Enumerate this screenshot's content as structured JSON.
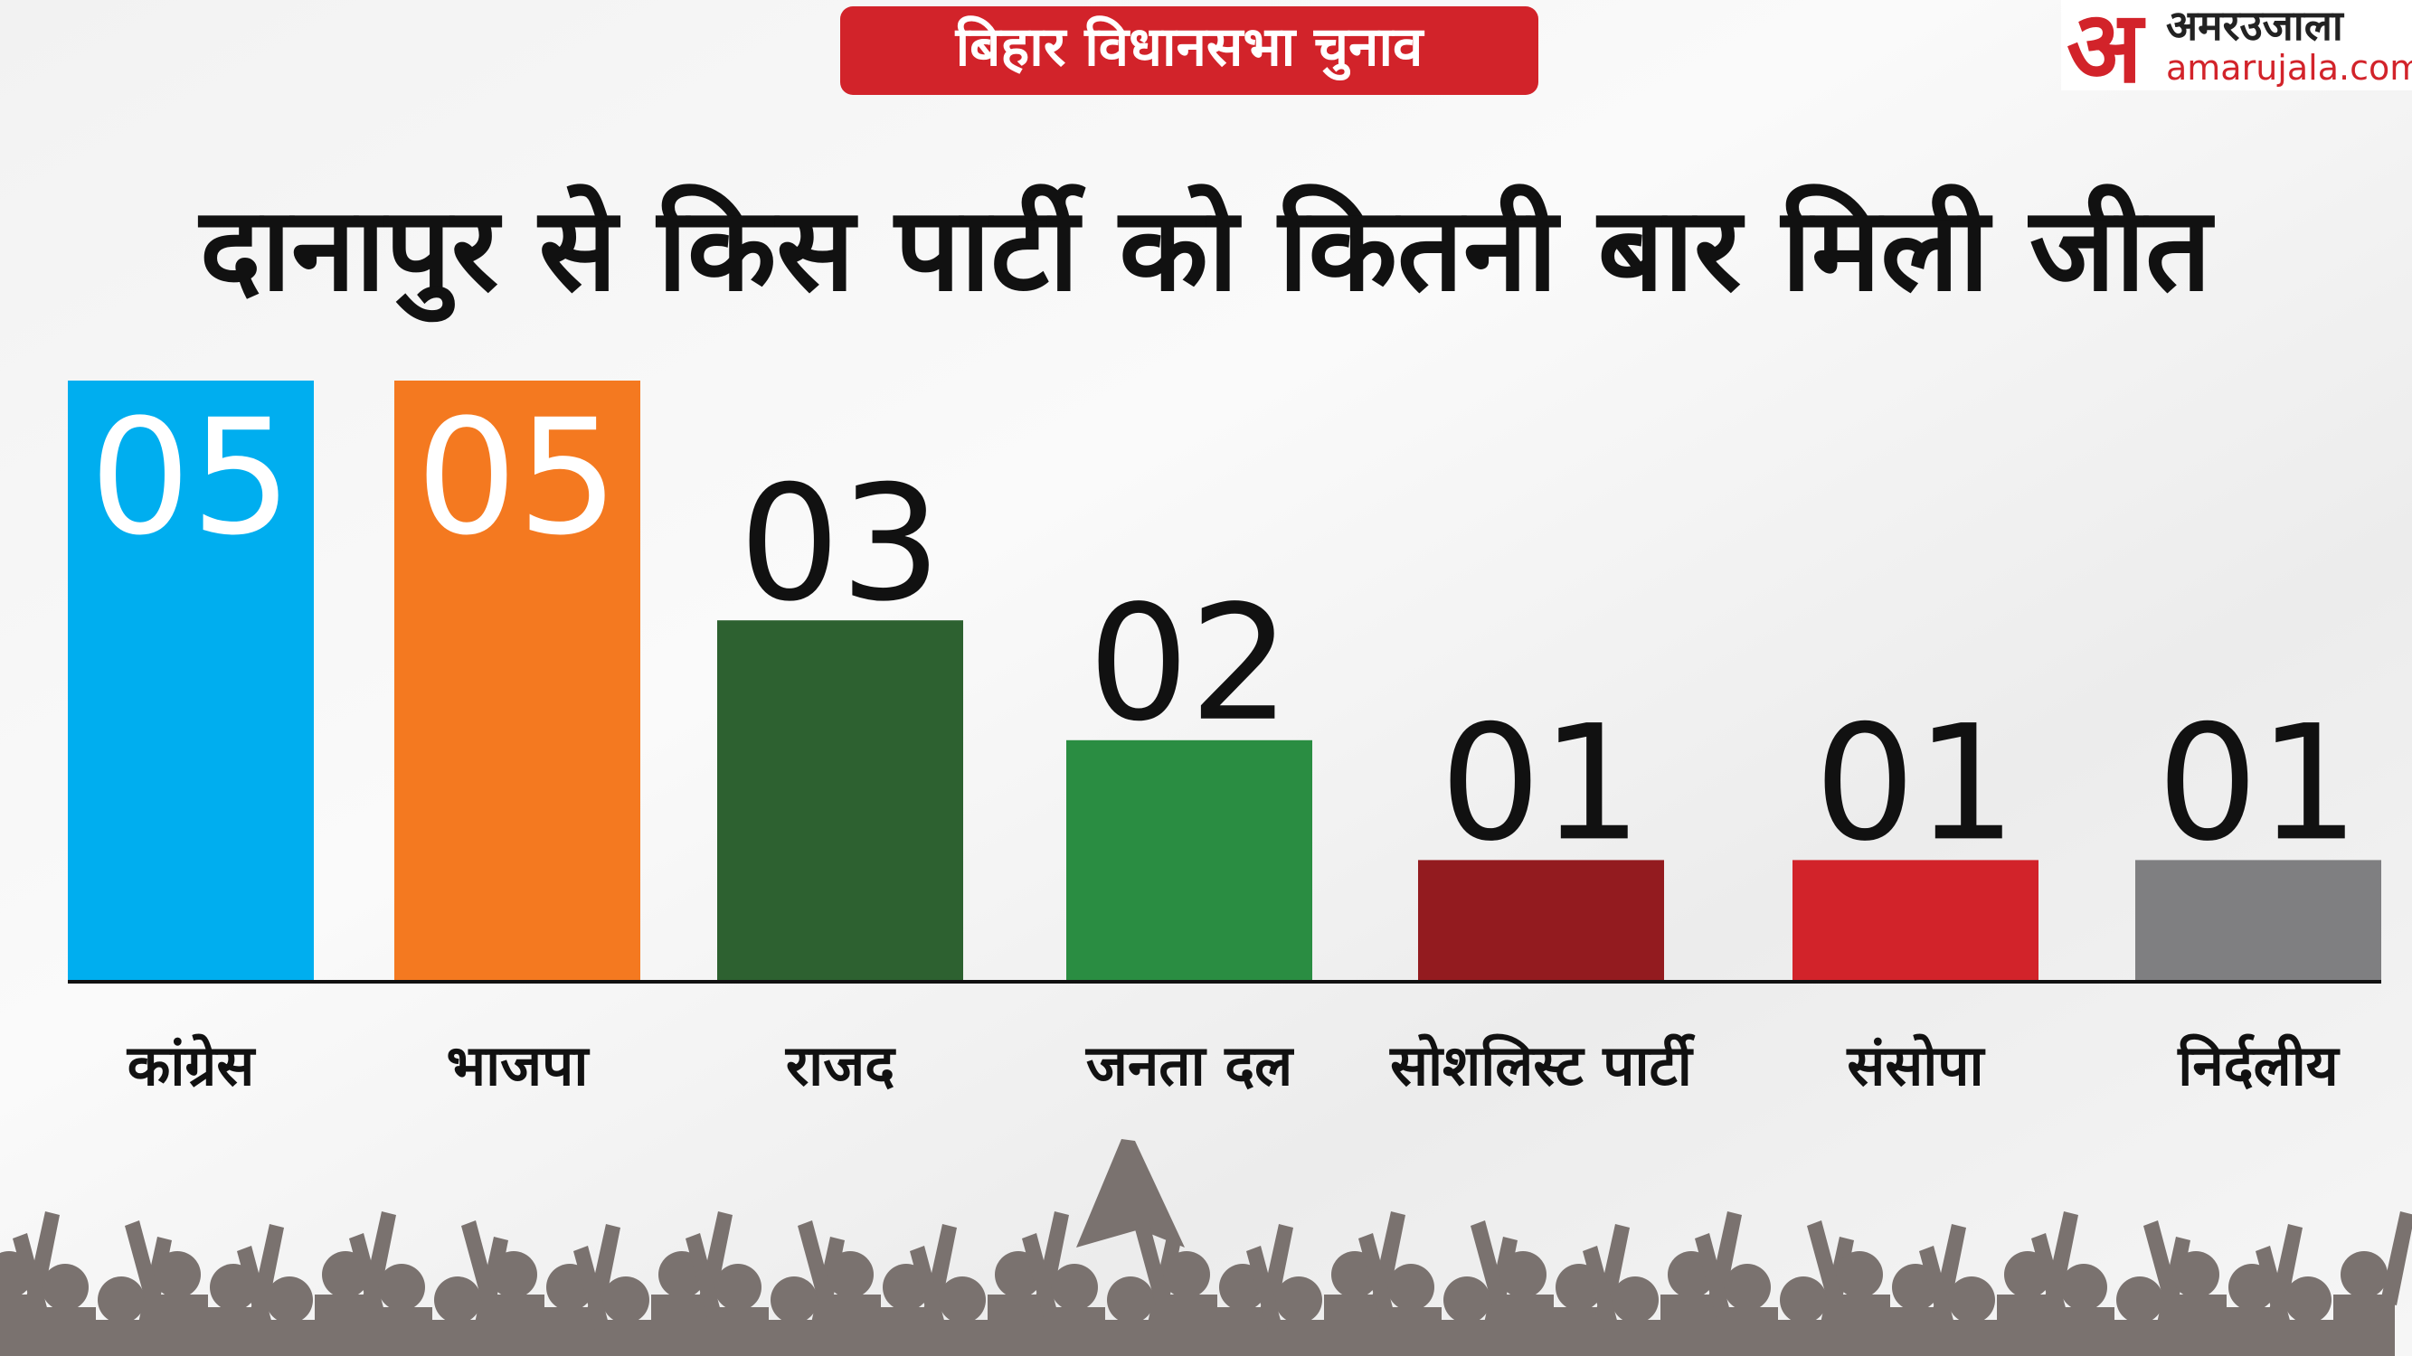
{
  "header": {
    "tag": "बिहार विधानसभा चुनाव",
    "logo_mark": "अ",
    "logo_name": "अमरउजाला",
    "logo_site": "amarujala.com"
  },
  "chart_data": {
    "type": "bar",
    "title": "दानापुर से किस पार्टी को कितनी बार मिली जीत",
    "categories": [
      "कांग्रेस",
      "भाजपा",
      "राजद",
      "जनता दल",
      "सोशलिस्ट पार्टी",
      "संसोपा",
      "निर्दलीय"
    ],
    "values": [
      5,
      5,
      3,
      2,
      1,
      1,
      1
    ],
    "value_labels": [
      "05",
      "05",
      "03",
      "02",
      "01",
      "01",
      "01"
    ],
    "colors": [
      "#00aeef",
      "#f47920",
      "#2d6130",
      "#2a8d42",
      "#931b1f",
      "#d2232a",
      "#7f7f81"
    ]
  }
}
